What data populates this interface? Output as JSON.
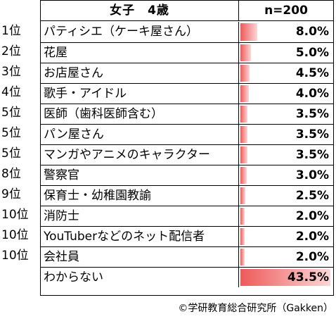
{
  "chart_data": {
    "type": "table",
    "header": {
      "group_label": "女子　4歳",
      "n_label": "n=200"
    },
    "rows": [
      {
        "rank": "1位",
        "label": "パティシエ（ケーキ屋さん）",
        "value": 8.0,
        "display": "8.0%"
      },
      {
        "rank": "2位",
        "label": "花屋",
        "value": 5.0,
        "display": "5.0%"
      },
      {
        "rank": "3位",
        "label": "お店屋さん",
        "value": 4.5,
        "display": "4.5%"
      },
      {
        "rank": "4位",
        "label": "歌手・アイドル",
        "value": 4.0,
        "display": "4.0%"
      },
      {
        "rank": "5位",
        "label": "医師（歯科医師含む）",
        "value": 3.5,
        "display": "3.5%"
      },
      {
        "rank": "5位",
        "label": "パン屋さん",
        "value": 3.5,
        "display": "3.5%"
      },
      {
        "rank": "5位",
        "label": "マンガやアニメのキャラクター",
        "value": 3.5,
        "display": "3.5%"
      },
      {
        "rank": "8位",
        "label": "警察官",
        "value": 3.0,
        "display": "3.0%"
      },
      {
        "rank": "9位",
        "label": "保育士・幼稚園教諭",
        "value": 2.5,
        "display": "2.5%"
      },
      {
        "rank": "10位",
        "label": "消防士",
        "value": 2.0,
        "display": "2.0%"
      },
      {
        "rank": "10位",
        "label": "YouTuberなどのネット配信者",
        "value": 2.0,
        "display": "2.0%"
      },
      {
        "rank": "10位",
        "label": "会社員",
        "value": 2.0,
        "display": "2.0%"
      },
      {
        "rank": "",
        "label": "わからない",
        "value": 43.5,
        "display": "43.5%"
      }
    ],
    "value_max": 43.5,
    "bar_color": "#ee5a5a"
  },
  "footer": {
    "copyright": "©学研教育総合研究所（Gakken）"
  }
}
